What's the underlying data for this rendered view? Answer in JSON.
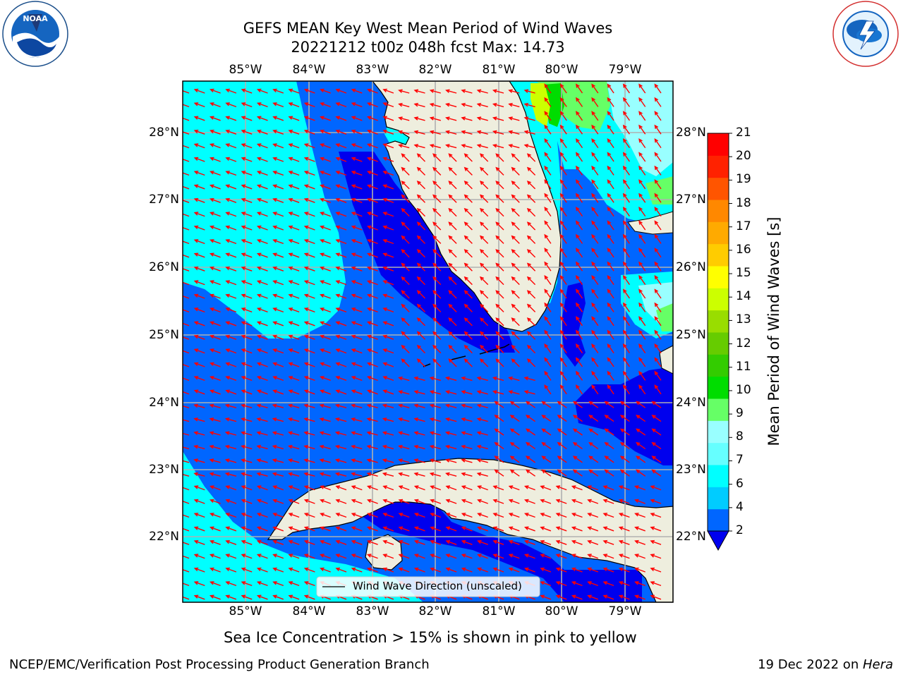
{
  "title": {
    "line1": "GEFS MEAN Key West Mean Period of Wind Waves",
    "line2": "20221212 t00z 048h fcst   Max: 14.73"
  },
  "map": {
    "lon_labels": [
      "85°W",
      "84°W",
      "83°W",
      "82°W",
      "81°W",
      "80°W",
      "79°W"
    ],
    "lat_labels": [
      "28°N",
      "27°N",
      "26°N",
      "25°N",
      "24°N",
      "23°N",
      "22°N"
    ],
    "legend_label": "Wind Wave Direction (unscaled)",
    "arrow_color": "#ff0000",
    "land_color": "#eeeede",
    "ocean_color": "#00ffff"
  },
  "colorbar": {
    "title": "Mean Period of Wind Waves [s]",
    "tick_labels": [
      "2",
      "4",
      "6",
      "7",
      "8",
      "9",
      "10",
      "11",
      "12",
      "13",
      "14",
      "15",
      "16",
      "17",
      "18",
      "19",
      "20",
      "21"
    ],
    "colors": [
      "#0066ff",
      "#00ccff",
      "#00ffff",
      "#66ffff",
      "#99ffff",
      "#66ff66",
      "#00dd00",
      "#33cc00",
      "#66cc00",
      "#99dd00",
      "#ccff00",
      "#ffff00",
      "#ffcc00",
      "#ffaa00",
      "#ff8800",
      "#ff5500",
      "#ff2200",
      "#ff0000"
    ],
    "extend_color": "#0000ee"
  },
  "notes": {
    "sea_ice": "Sea Ice Concentration > 15% is shown in pink to yellow"
  },
  "footer": {
    "left": "NCEP/EMC/Verification Post Processing Product Generation Branch",
    "right_date": "19 Dec 2022 on ",
    "right_host": "Hera"
  },
  "logos": {
    "noaa_text": "NOAA",
    "noaa_ring": "NATIONAL OCEANIC AND ATMOSPHERIC ADMINISTRATION · U.S. DEPARTMENT OF COMMERCE",
    "nws_ring": "NATIONAL WEATHER SERVICE"
  }
}
